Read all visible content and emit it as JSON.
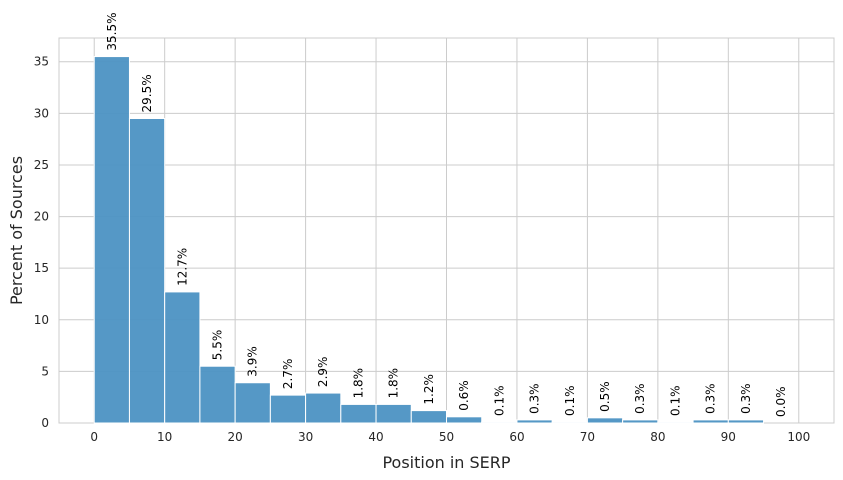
{
  "chart_data": {
    "type": "bar",
    "subtype": "histogram",
    "xlabel": "Position in SERP",
    "ylabel": "Percent of Sources",
    "xlim": [
      -5,
      105
    ],
    "ylim": [
      0,
      37.3
    ],
    "xticks": [
      0,
      10,
      20,
      30,
      40,
      50,
      60,
      70,
      80,
      90,
      100
    ],
    "yticks": [
      0,
      5,
      10,
      15,
      20,
      25,
      30,
      35
    ],
    "grid": true,
    "bar_color": "#4C92C3",
    "bins": [
      {
        "x0": 0,
        "x1": 5,
        "value": 35.5,
        "label": "35.5%"
      },
      {
        "x0": 5,
        "x1": 10,
        "value": 29.5,
        "label": "29.5%"
      },
      {
        "x0": 10,
        "x1": 15,
        "value": 12.7,
        "label": "12.7%"
      },
      {
        "x0": 15,
        "x1": 20,
        "value": 5.5,
        "label": "5.5%"
      },
      {
        "x0": 20,
        "x1": 25,
        "value": 3.9,
        "label": "3.9%"
      },
      {
        "x0": 25,
        "x1": 30,
        "value": 2.7,
        "label": "2.7%"
      },
      {
        "x0": 30,
        "x1": 35,
        "value": 2.9,
        "label": "2.9%"
      },
      {
        "x0": 35,
        "x1": 40,
        "value": 1.8,
        "label": "1.8%"
      },
      {
        "x0": 40,
        "x1": 45,
        "value": 1.8,
        "label": "1.8%"
      },
      {
        "x0": 45,
        "x1": 50,
        "value": 1.2,
        "label": "1.2%"
      },
      {
        "x0": 50,
        "x1": 55,
        "value": 0.6,
        "label": "0.6%"
      },
      {
        "x0": 55,
        "x1": 60,
        "value": 0.1,
        "label": "0.1%"
      },
      {
        "x0": 60,
        "x1": 65,
        "value": 0.3,
        "label": "0.3%"
      },
      {
        "x0": 65,
        "x1": 70,
        "value": 0.1,
        "label": "0.1%"
      },
      {
        "x0": 70,
        "x1": 75,
        "value": 0.5,
        "label": "0.5%"
      },
      {
        "x0": 75,
        "x1": 80,
        "value": 0.3,
        "label": "0.3%"
      },
      {
        "x0": 80,
        "x1": 85,
        "value": 0.1,
        "label": "0.1%"
      },
      {
        "x0": 85,
        "x1": 90,
        "value": 0.3,
        "label": "0.3%"
      },
      {
        "x0": 90,
        "x1": 95,
        "value": 0.3,
        "label": "0.3%"
      },
      {
        "x0": 95,
        "x1": 100,
        "value": 0.0,
        "label": "0.0%"
      }
    ]
  }
}
